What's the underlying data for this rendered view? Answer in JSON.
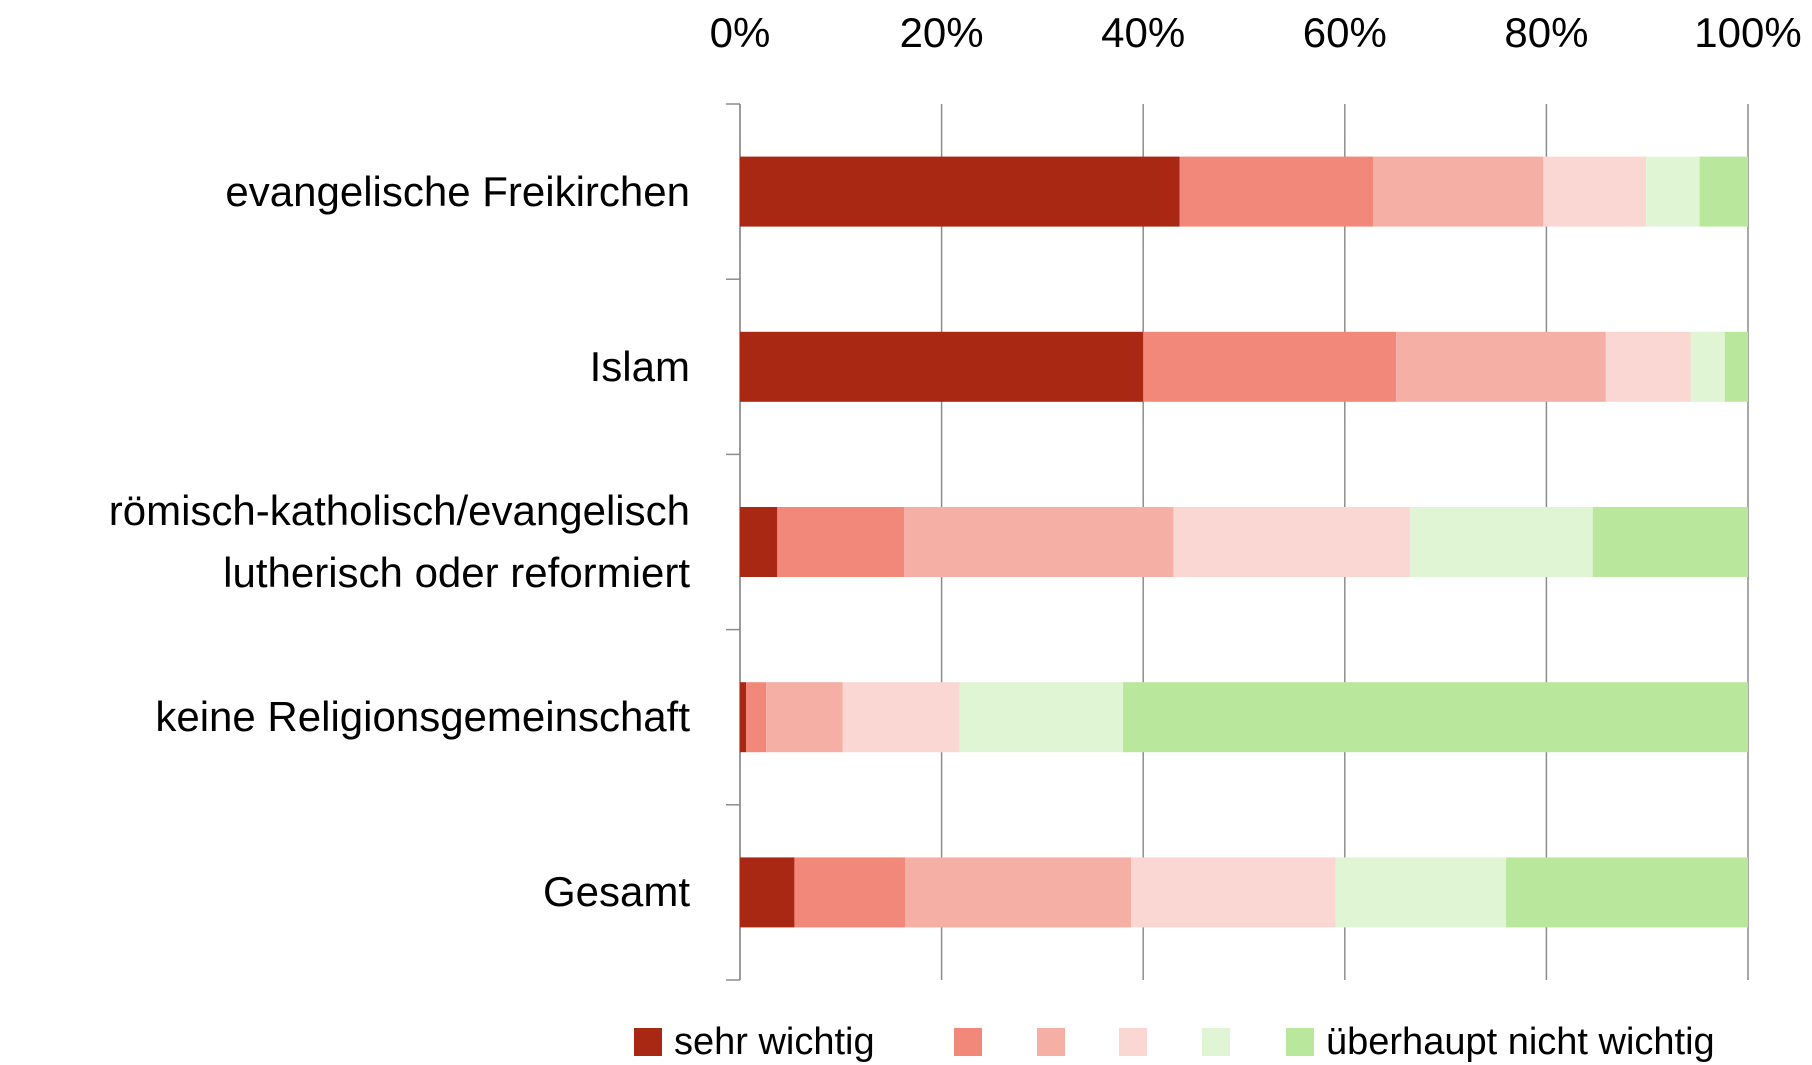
{
  "chart_data": {
    "type": "stacked_bar_horizontal",
    "categories": [
      "evangelische Freikirchen",
      "Islam",
      "römisch-katholisch/evangelisch lutherisch oder reformiert",
      "keine Religionsgemeinschaft",
      "Gesamt"
    ],
    "series": [
      {
        "name": "sehr wichtig",
        "color": "#a92814",
        "values": [
          43.6,
          40.0,
          3.7,
          0.6,
          5.4
        ]
      },
      {
        "name": null,
        "color": "#f2887a",
        "values": [
          19.2,
          25.1,
          12.6,
          2.0,
          11.0
        ]
      },
      {
        "name": null,
        "color": "#f6afa4",
        "values": [
          16.9,
          20.8,
          26.7,
          7.6,
          22.4
        ]
      },
      {
        "name": null,
        "color": "#fad7d2",
        "values": [
          10.2,
          8.4,
          23.5,
          11.6,
          20.3
        ]
      },
      {
        "name": null,
        "color": "#e0f5d4",
        "values": [
          5.3,
          3.4,
          18.1,
          16.2,
          16.9
        ]
      },
      {
        "name": "überhaupt nicht wichtig",
        "color": "#b9e89c",
        "values": [
          4.8,
          2.3,
          15.4,
          62.0,
          24.0
        ]
      }
    ],
    "xlim": [
      0,
      100
    ],
    "xticks": [
      {
        "value": 0,
        "label": "0%"
      },
      {
        "value": 20,
        "label": "20%"
      },
      {
        "value": 40,
        "label": "40%"
      },
      {
        "value": 60,
        "label": "60%"
      },
      {
        "value": 80,
        "label": "80%"
      },
      {
        "value": 100,
        "label": "100%"
      }
    ],
    "grid": true,
    "legend": "bottom"
  }
}
